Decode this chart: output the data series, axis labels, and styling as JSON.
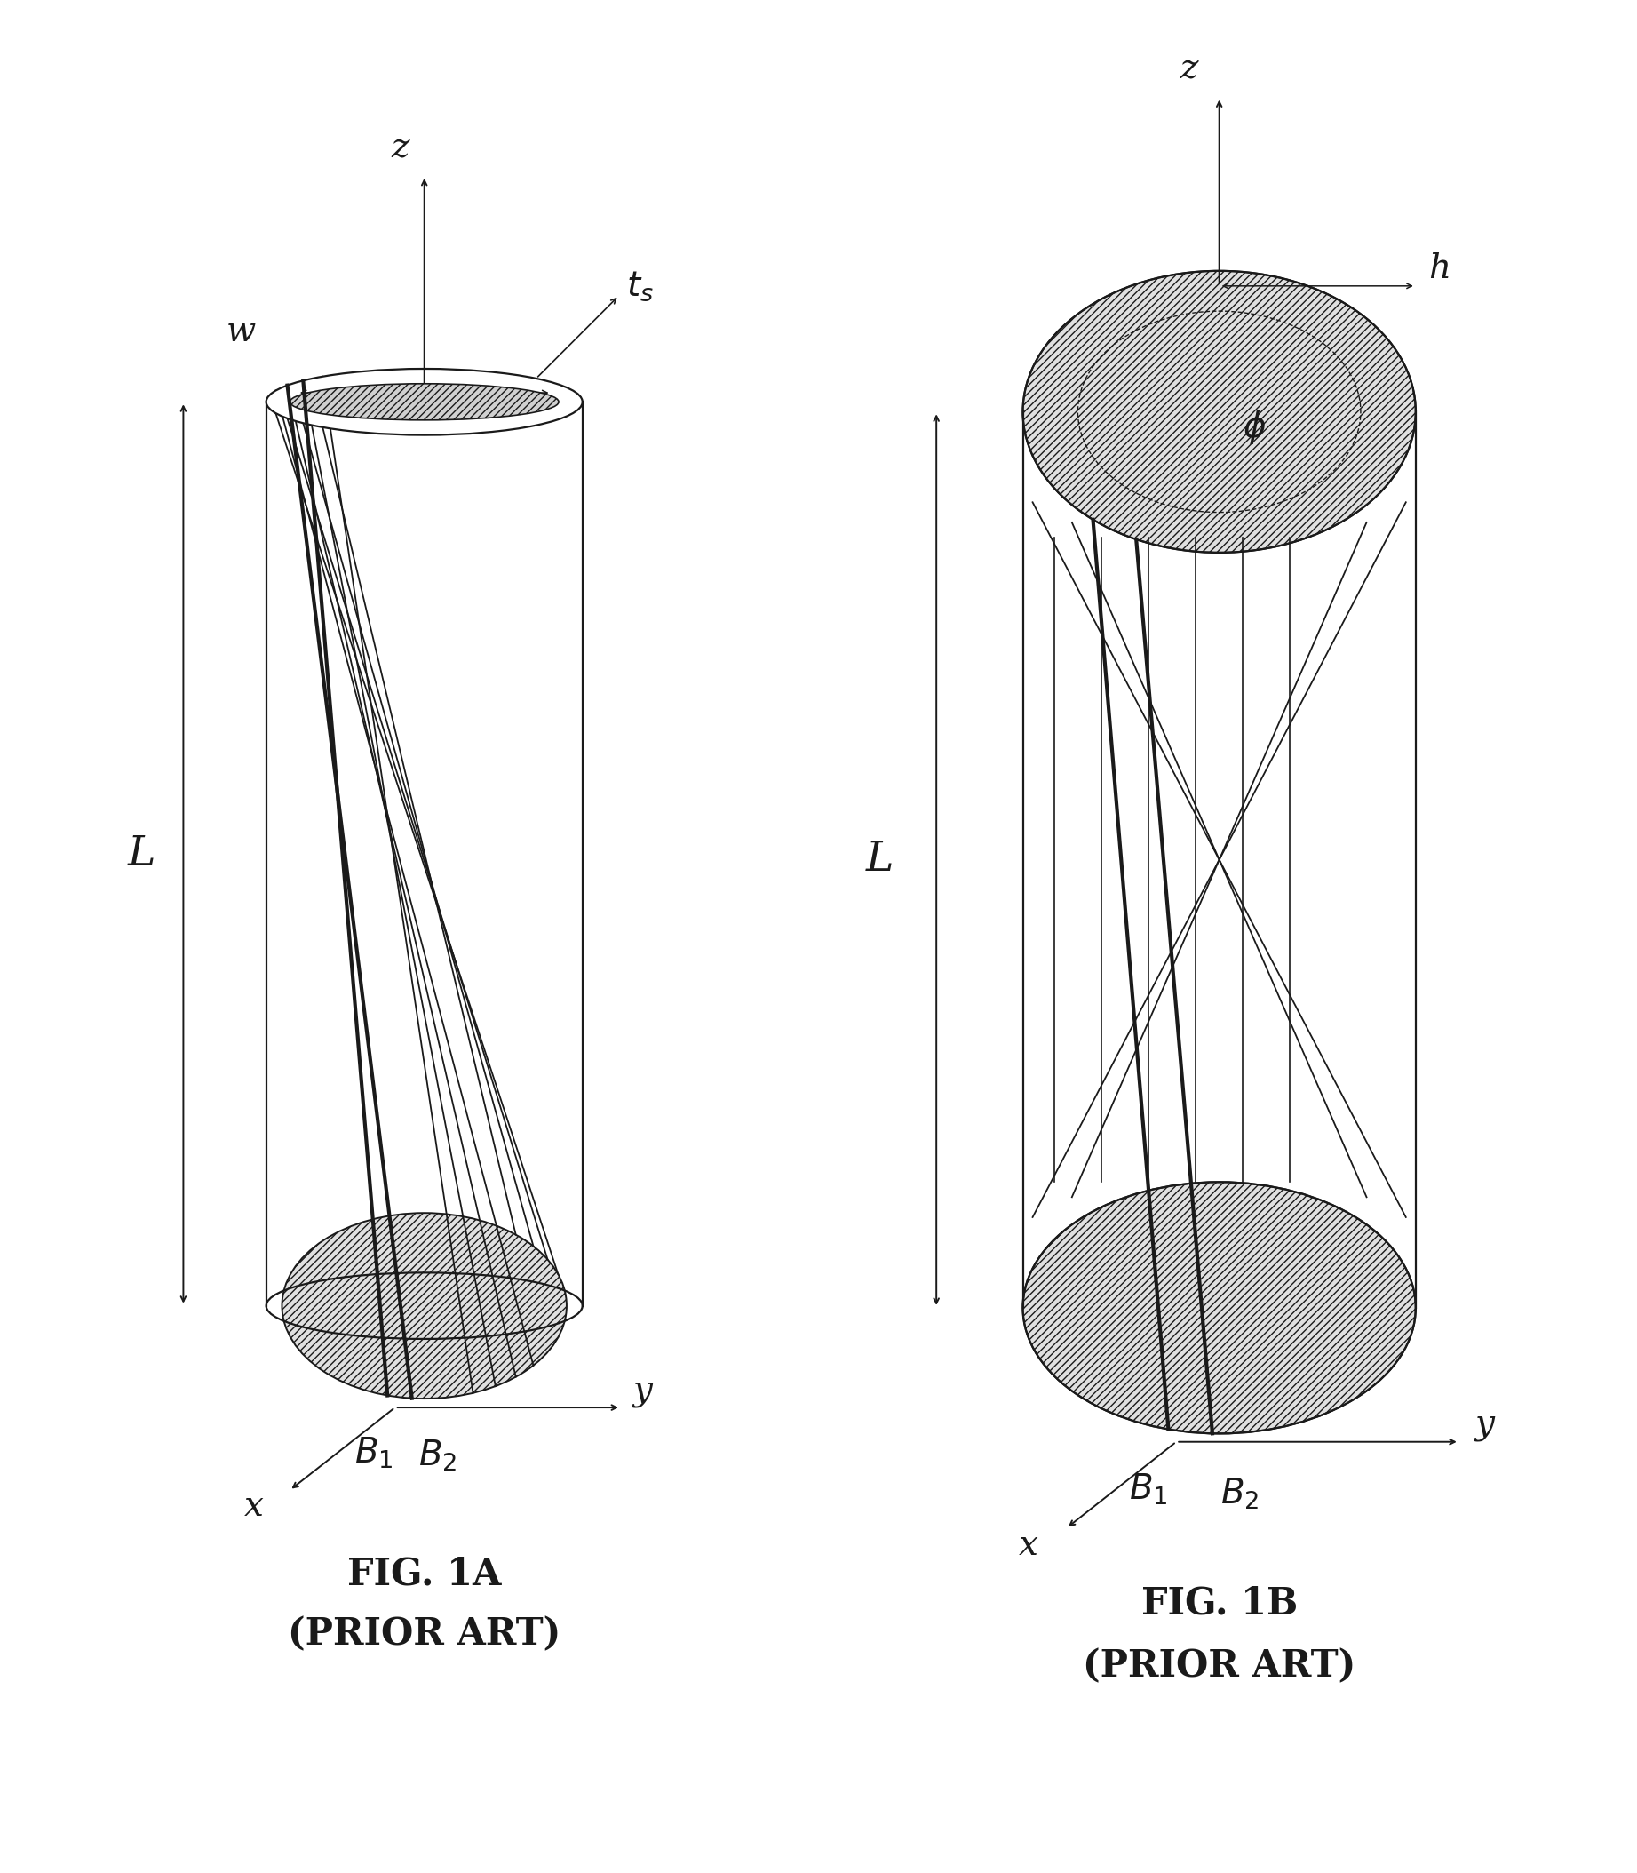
{
  "fig_width": 18.43,
  "fig_height": 21.08,
  "bg_color": "#ffffff",
  "lc": "#1a1a1a",
  "fig1a_title": "FIG. 1A",
  "fig1a_subtitle": "(PRIOR ART)",
  "fig1b_title": "FIG. 1B",
  "fig1b_subtitle": "(PRIOR ART)",
  "title_fontsize": 30,
  "label_fontsize": 28
}
